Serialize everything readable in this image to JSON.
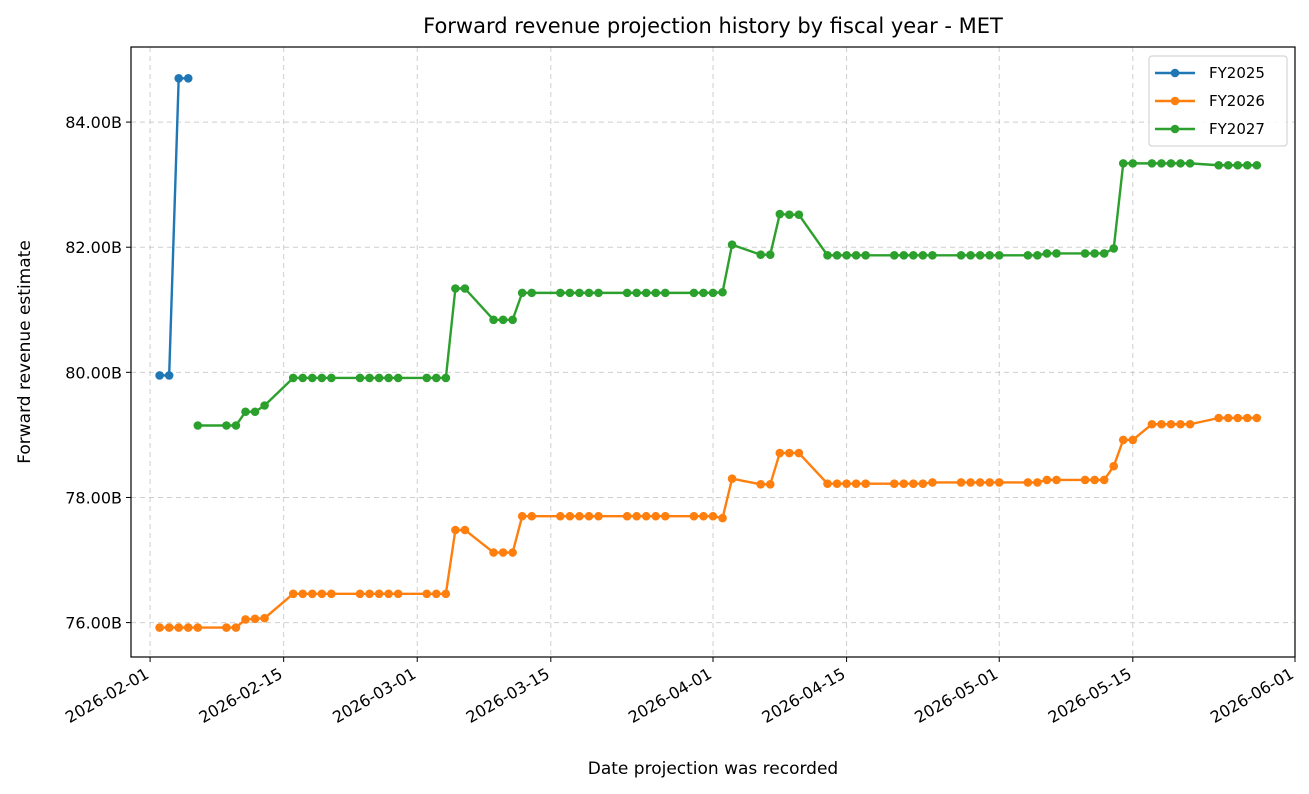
{
  "chart_data": {
    "type": "line",
    "title": "Forward revenue projection history by fiscal year - MET",
    "xlabel": "Date projection was recorded",
    "ylabel": "Forward revenue estimate",
    "xlim": [
      "2026-01-30",
      "2026-06-01"
    ],
    "ylim": [
      75.45,
      85.2
    ],
    "x_ticks": [
      "2026-02-01",
      "2026-02-15",
      "2026-03-01",
      "2026-03-15",
      "2026-04-01",
      "2026-04-15",
      "2026-05-01",
      "2026-05-15",
      "2026-06-01"
    ],
    "y_ticks": [
      76,
      78,
      80,
      82,
      84
    ],
    "y_tick_labels": [
      "76.00B",
      "78.00B",
      "80.00B",
      "82.00B",
      "84.00B"
    ],
    "grid": true,
    "legend_position": "top-right",
    "series": [
      {
        "name": "FY2025",
        "color": "#1f77b4",
        "points": [
          [
            "2026-02-02",
            79.95
          ],
          [
            "2026-02-03",
            79.95
          ],
          [
            "2026-02-04",
            84.7
          ],
          [
            "2026-02-05",
            84.7
          ]
        ]
      },
      {
        "name": "FY2026",
        "color": "#ff7f0e",
        "points": [
          [
            "2026-02-02",
            75.92
          ],
          [
            "2026-02-03",
            75.92
          ],
          [
            "2026-02-04",
            75.92
          ],
          [
            "2026-02-05",
            75.92
          ],
          [
            "2026-02-06",
            75.92
          ],
          [
            "2026-02-09",
            75.92
          ],
          [
            "2026-02-10",
            75.92
          ],
          [
            "2026-02-11",
            76.05
          ],
          [
            "2026-02-12",
            76.06
          ],
          [
            "2026-02-13",
            76.07
          ],
          [
            "2026-02-16",
            76.46
          ],
          [
            "2026-02-17",
            76.46
          ],
          [
            "2026-02-18",
            76.46
          ],
          [
            "2026-02-19",
            76.46
          ],
          [
            "2026-02-20",
            76.46
          ],
          [
            "2026-02-23",
            76.46
          ],
          [
            "2026-02-24",
            76.46
          ],
          [
            "2026-02-25",
            76.46
          ],
          [
            "2026-02-26",
            76.46
          ],
          [
            "2026-02-27",
            76.46
          ],
          [
            "2026-03-02",
            76.46
          ],
          [
            "2026-03-03",
            76.46
          ],
          [
            "2026-03-04",
            76.46
          ],
          [
            "2026-03-05",
            77.48
          ],
          [
            "2026-03-06",
            77.48
          ],
          [
            "2026-03-09",
            77.12
          ],
          [
            "2026-03-10",
            77.12
          ],
          [
            "2026-03-11",
            77.12
          ],
          [
            "2026-03-12",
            77.7
          ],
          [
            "2026-03-13",
            77.7
          ],
          [
            "2026-03-16",
            77.7
          ],
          [
            "2026-03-17",
            77.7
          ],
          [
            "2026-03-18",
            77.7
          ],
          [
            "2026-03-19",
            77.7
          ],
          [
            "2026-03-20",
            77.7
          ],
          [
            "2026-03-23",
            77.7
          ],
          [
            "2026-03-24",
            77.7
          ],
          [
            "2026-03-25",
            77.7
          ],
          [
            "2026-03-26",
            77.7
          ],
          [
            "2026-03-27",
            77.7
          ],
          [
            "2026-03-30",
            77.7
          ],
          [
            "2026-03-31",
            77.7
          ],
          [
            "2026-04-01",
            77.7
          ],
          [
            "2026-04-02",
            77.67
          ],
          [
            "2026-04-03",
            78.3
          ],
          [
            "2026-04-06",
            78.21
          ],
          [
            "2026-04-07",
            78.21
          ],
          [
            "2026-04-08",
            78.71
          ],
          [
            "2026-04-09",
            78.71
          ],
          [
            "2026-04-10",
            78.71
          ],
          [
            "2026-04-13",
            78.22
          ],
          [
            "2026-04-14",
            78.22
          ],
          [
            "2026-04-15",
            78.22
          ],
          [
            "2026-04-16",
            78.22
          ],
          [
            "2026-04-17",
            78.22
          ],
          [
            "2026-04-20",
            78.22
          ],
          [
            "2026-04-21",
            78.22
          ],
          [
            "2026-04-22",
            78.22
          ],
          [
            "2026-04-23",
            78.22
          ],
          [
            "2026-04-24",
            78.24
          ],
          [
            "2026-04-27",
            78.24
          ],
          [
            "2026-04-28",
            78.24
          ],
          [
            "2026-04-29",
            78.24
          ],
          [
            "2026-04-30",
            78.24
          ],
          [
            "2026-05-01",
            78.24
          ],
          [
            "2026-05-04",
            78.24
          ],
          [
            "2026-05-05",
            78.24
          ],
          [
            "2026-05-06",
            78.28
          ],
          [
            "2026-05-07",
            78.28
          ],
          [
            "2026-05-10",
            78.28
          ],
          [
            "2026-05-11",
            78.28
          ],
          [
            "2026-05-12",
            78.28
          ],
          [
            "2026-05-13",
            78.5
          ],
          [
            "2026-05-14",
            78.92
          ],
          [
            "2026-05-15",
            78.92
          ],
          [
            "2026-05-17",
            79.17
          ],
          [
            "2026-05-18",
            79.17
          ],
          [
            "2026-05-19",
            79.17
          ],
          [
            "2026-05-20",
            79.17
          ],
          [
            "2026-05-21",
            79.17
          ],
          [
            "2026-05-24",
            79.27
          ],
          [
            "2026-05-25",
            79.27
          ],
          [
            "2026-05-26",
            79.27
          ],
          [
            "2026-05-27",
            79.27
          ],
          [
            "2026-05-28",
            79.27
          ]
        ]
      },
      {
        "name": "FY2027",
        "color": "#2ca02c",
        "points": [
          [
            "2026-02-06",
            79.15
          ],
          [
            "2026-02-09",
            79.15
          ],
          [
            "2026-02-10",
            79.15
          ],
          [
            "2026-02-11",
            79.37
          ],
          [
            "2026-02-12",
            79.37
          ],
          [
            "2026-02-13",
            79.47
          ],
          [
            "2026-02-16",
            79.91
          ],
          [
            "2026-02-17",
            79.91
          ],
          [
            "2026-02-18",
            79.91
          ],
          [
            "2026-02-19",
            79.91
          ],
          [
            "2026-02-20",
            79.91
          ],
          [
            "2026-02-23",
            79.91
          ],
          [
            "2026-02-24",
            79.91
          ],
          [
            "2026-02-25",
            79.91
          ],
          [
            "2026-02-26",
            79.91
          ],
          [
            "2026-02-27",
            79.91
          ],
          [
            "2026-03-02",
            79.91
          ],
          [
            "2026-03-03",
            79.91
          ],
          [
            "2026-03-04",
            79.91
          ],
          [
            "2026-03-05",
            81.34
          ],
          [
            "2026-03-06",
            81.34
          ],
          [
            "2026-03-09",
            80.84
          ],
          [
            "2026-03-10",
            80.84
          ],
          [
            "2026-03-11",
            80.84
          ],
          [
            "2026-03-12",
            81.27
          ],
          [
            "2026-03-13",
            81.27
          ],
          [
            "2026-03-16",
            81.27
          ],
          [
            "2026-03-17",
            81.27
          ],
          [
            "2026-03-18",
            81.27
          ],
          [
            "2026-03-19",
            81.27
          ],
          [
            "2026-03-20",
            81.27
          ],
          [
            "2026-03-23",
            81.27
          ],
          [
            "2026-03-24",
            81.27
          ],
          [
            "2026-03-25",
            81.27
          ],
          [
            "2026-03-26",
            81.27
          ],
          [
            "2026-03-27",
            81.27
          ],
          [
            "2026-03-30",
            81.27
          ],
          [
            "2026-03-31",
            81.27
          ],
          [
            "2026-04-01",
            81.27
          ],
          [
            "2026-04-02",
            81.28
          ],
          [
            "2026-04-03",
            82.04
          ],
          [
            "2026-04-06",
            81.88
          ],
          [
            "2026-04-07",
            81.88
          ],
          [
            "2026-04-08",
            82.53
          ],
          [
            "2026-04-09",
            82.52
          ],
          [
            "2026-04-10",
            82.52
          ],
          [
            "2026-04-13",
            81.87
          ],
          [
            "2026-04-14",
            81.87
          ],
          [
            "2026-04-15",
            81.87
          ],
          [
            "2026-04-16",
            81.87
          ],
          [
            "2026-04-17",
            81.87
          ],
          [
            "2026-04-20",
            81.87
          ],
          [
            "2026-04-21",
            81.87
          ],
          [
            "2026-04-22",
            81.87
          ],
          [
            "2026-04-23",
            81.87
          ],
          [
            "2026-04-24",
            81.87
          ],
          [
            "2026-04-27",
            81.87
          ],
          [
            "2026-04-28",
            81.87
          ],
          [
            "2026-04-29",
            81.87
          ],
          [
            "2026-04-30",
            81.87
          ],
          [
            "2026-05-01",
            81.87
          ],
          [
            "2026-05-04",
            81.87
          ],
          [
            "2026-05-05",
            81.87
          ],
          [
            "2026-05-06",
            81.9
          ],
          [
            "2026-05-07",
            81.9
          ],
          [
            "2026-05-10",
            81.9
          ],
          [
            "2026-05-11",
            81.9
          ],
          [
            "2026-05-12",
            81.9
          ],
          [
            "2026-05-13",
            81.98
          ],
          [
            "2026-05-14",
            83.34
          ],
          [
            "2026-05-15",
            83.34
          ],
          [
            "2026-05-17",
            83.34
          ],
          [
            "2026-05-18",
            83.34
          ],
          [
            "2026-05-19",
            83.34
          ],
          [
            "2026-05-20",
            83.34
          ],
          [
            "2026-05-21",
            83.34
          ],
          [
            "2026-05-24",
            83.31
          ],
          [
            "2026-05-25",
            83.31
          ],
          [
            "2026-05-26",
            83.31
          ],
          [
            "2026-05-27",
            83.31
          ],
          [
            "2026-05-28",
            83.31
          ]
        ]
      }
    ]
  }
}
